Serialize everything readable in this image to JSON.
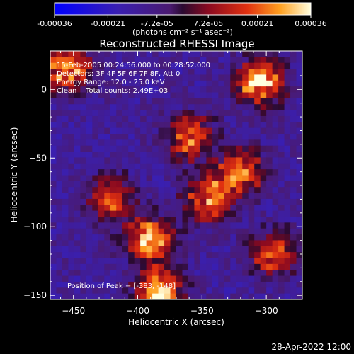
{
  "colorbar": {
    "tick_labels": [
      "-0.00036",
      "-0.00021",
      "-7.2e-05",
      "7.2e-05",
      "0.00021",
      "0.00036"
    ],
    "unit_label": "(photons cm⁻² s⁻¹ asec⁻²)",
    "range": [
      -0.00036,
      0.00036
    ]
  },
  "chart_data": {
    "type": "heatmap",
    "title": "Reconstructed RHESSI Image",
    "xlabel": "Heliocentric X (arcsec)",
    "ylabel": "Heliocentric Y (arcsec)",
    "xlim": [
      -468,
      -272
    ],
    "ylim": [
      -153,
      28
    ],
    "x_ticks": [
      -450,
      -400,
      -350,
      -300
    ],
    "x_tick_labels": [
      "−450",
      "−400",
      "−350",
      "−300"
    ],
    "y_ticks": [
      0,
      -50,
      -100,
      -150
    ],
    "y_tick_labels": [
      "0",
      "−50",
      "−100",
      "−150"
    ],
    "annotations": [
      "15-Feb-2005 00:24:56.000 to 00:28:52.000",
      "Detectors: 3F 4F 5F 6F 7F 8F, Att 0",
      "Energy Range: 12.0 - 25.0 keV",
      "Clean    Total counts: 2.49E+03"
    ],
    "peak_text": "Position of Peak = [-383, -148]",
    "peak": [
      -383,
      -148
    ],
    "bright_sources": [
      {
        "x": -455,
        "y": 15,
        "value": 0.00028
      },
      {
        "x": -305,
        "y": 5,
        "value": 0.00033
      },
      {
        "x": -360,
        "y": -35,
        "value": 0.00022
      },
      {
        "x": -320,
        "y": -60,
        "value": 0.00025
      },
      {
        "x": -420,
        "y": -80,
        "value": 0.00018
      },
      {
        "x": -345,
        "y": -80,
        "value": 0.00024
      },
      {
        "x": -390,
        "y": -110,
        "value": 0.0003
      },
      {
        "x": -295,
        "y": -120,
        "value": 0.00022
      },
      {
        "x": -383,
        "y": -148,
        "value": 0.00036
      }
    ]
  },
  "footer": {
    "date": "28-Apr-2022 12:00"
  }
}
